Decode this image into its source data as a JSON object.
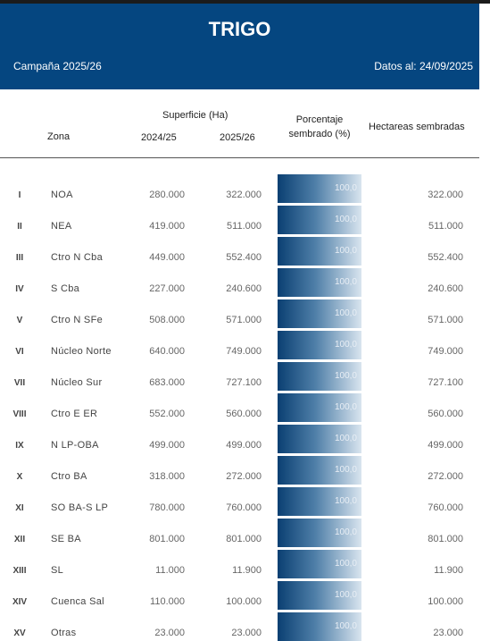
{
  "header": {
    "title": "TRIGO",
    "campaign": "Campaña 2025/26",
    "date": "Datos al: 24/09/2025"
  },
  "table": {
    "columns": {
      "zona": "Zona",
      "superficie": "Superficie (Ha)",
      "year1": "2024/25",
      "year2": "2025/26",
      "porcentaje": "Porcentaje sembrado (%)",
      "hectareas": "Hectareas sembradas"
    },
    "rows": [
      [
        "I",
        "NOA",
        "280.000",
        "322.000",
        "100,0",
        "322.000"
      ],
      [
        "II",
        "NEA",
        "419.000",
        "511.000",
        "100,0",
        "511.000"
      ],
      [
        "III",
        "Ctro N Cba",
        "449.000",
        "552.400",
        "100,0",
        "552.400"
      ],
      [
        "IV",
        "S Cba",
        "227.000",
        "240.600",
        "100,0",
        "240.600"
      ],
      [
        "V",
        "Ctro N SFe",
        "508.000",
        "571.000",
        "100,0",
        "571.000"
      ],
      [
        "VI",
        "Núcleo Norte",
        "640.000",
        "749.000",
        "100,0",
        "749.000"
      ],
      [
        "VII",
        "Núcleo Sur",
        "683.000",
        "727.100",
        "100,0",
        "727.100"
      ],
      [
        "VIII",
        "Ctro E ER",
        "552.000",
        "560.000",
        "100,0",
        "560.000"
      ],
      [
        "IX",
        "N LP-OBA",
        "499.000",
        "499.000",
        "100,0",
        "499.000"
      ],
      [
        "X",
        "Ctro BA",
        "318.000",
        "272.000",
        "100,0",
        "272.000"
      ],
      [
        "XI",
        "SO BA-S LP",
        "780.000",
        "760.000",
        "100,0",
        "760.000"
      ],
      [
        "XII",
        "SE BA",
        "801.000",
        "801.000",
        "100,0",
        "801.000"
      ],
      [
        "XIII",
        "SL",
        "11.000",
        "11.900",
        "100,0",
        "11.900"
      ],
      [
        "XIV",
        "Cuenca Sal",
        "110.000",
        "100.000",
        "100,0",
        "100.000"
      ],
      [
        "XV",
        "Otras",
        "23.000",
        "23.000",
        "100,0",
        "23.000"
      ]
    ]
  }
}
